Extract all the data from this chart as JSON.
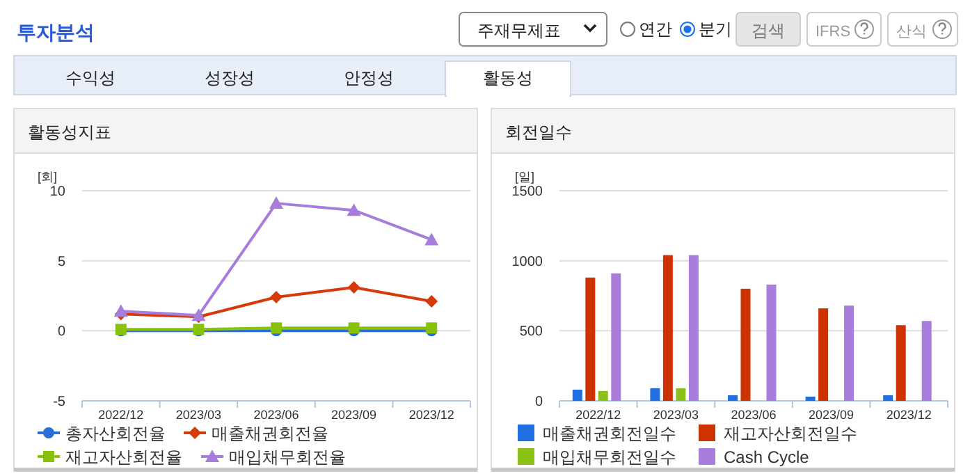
{
  "chart_data": [
    {
      "type": "other",
      "title": "투자분석",
      "annotations": [
        "주재무제표",
        "연간",
        "분기",
        "검색",
        "IFRS",
        "산식",
        "수익성",
        "성장성",
        "안정성",
        "활동성"
      ]
    },
    {
      "type": "line",
      "title": "활동성지표",
      "ylabel": "[회]",
      "categories": [
        "2022/12",
        "2023/03",
        "2023/06",
        "2023/09",
        "2023/12"
      ],
      "ylim": [
        -5,
        10
      ],
      "yticks": [
        -5,
        0,
        5,
        10
      ],
      "grid": "y",
      "legend": "bottom",
      "series": [
        {
          "name": "총자산회전율",
          "color": "#2a6fd6",
          "marker": "circle",
          "values": [
            0,
            0,
            0,
            0,
            0
          ]
        },
        {
          "name": "매출채권회전율",
          "color": "#d63a0a",
          "marker": "diamond",
          "values": [
            1.2,
            1.0,
            2.4,
            3.1,
            2.1
          ]
        },
        {
          "name": "재고자산회전율",
          "color": "#88c20a",
          "marker": "square",
          "values": [
            0.1,
            0.1,
            0.2,
            0.2,
            0.2
          ]
        },
        {
          "name": "매입채무회전율",
          "color": "#a77ddb",
          "marker": "triangle",
          "values": [
            1.4,
            1.1,
            9.1,
            8.6,
            6.5
          ]
        }
      ]
    },
    {
      "type": "bar",
      "title": "회전일수",
      "ylabel": "[일]",
      "categories": [
        "2022/12",
        "2023/03",
        "2023/06",
        "2023/09",
        "2023/12"
      ],
      "ylim": [
        0,
        1500
      ],
      "yticks": [
        0,
        500,
        1000,
        1500
      ],
      "grid": "y",
      "legend": "bottom",
      "series": [
        {
          "name": "매출채권회전일수",
          "color": "#1f6fe0",
          "values": [
            80,
            90,
            40,
            30,
            40
          ]
        },
        {
          "name": "재고자산회전일수",
          "color": "#cc3300",
          "values": [
            880,
            1040,
            800,
            660,
            540
          ]
        },
        {
          "name": "매입채무회전일수",
          "color": "#8cc11a",
          "values": [
            70,
            90,
            0,
            0,
            0
          ]
        },
        {
          "name": "Cash Cycle",
          "color": "#a97ddb",
          "values": [
            910,
            1040,
            830,
            680,
            570
          ]
        }
      ]
    }
  ]
}
